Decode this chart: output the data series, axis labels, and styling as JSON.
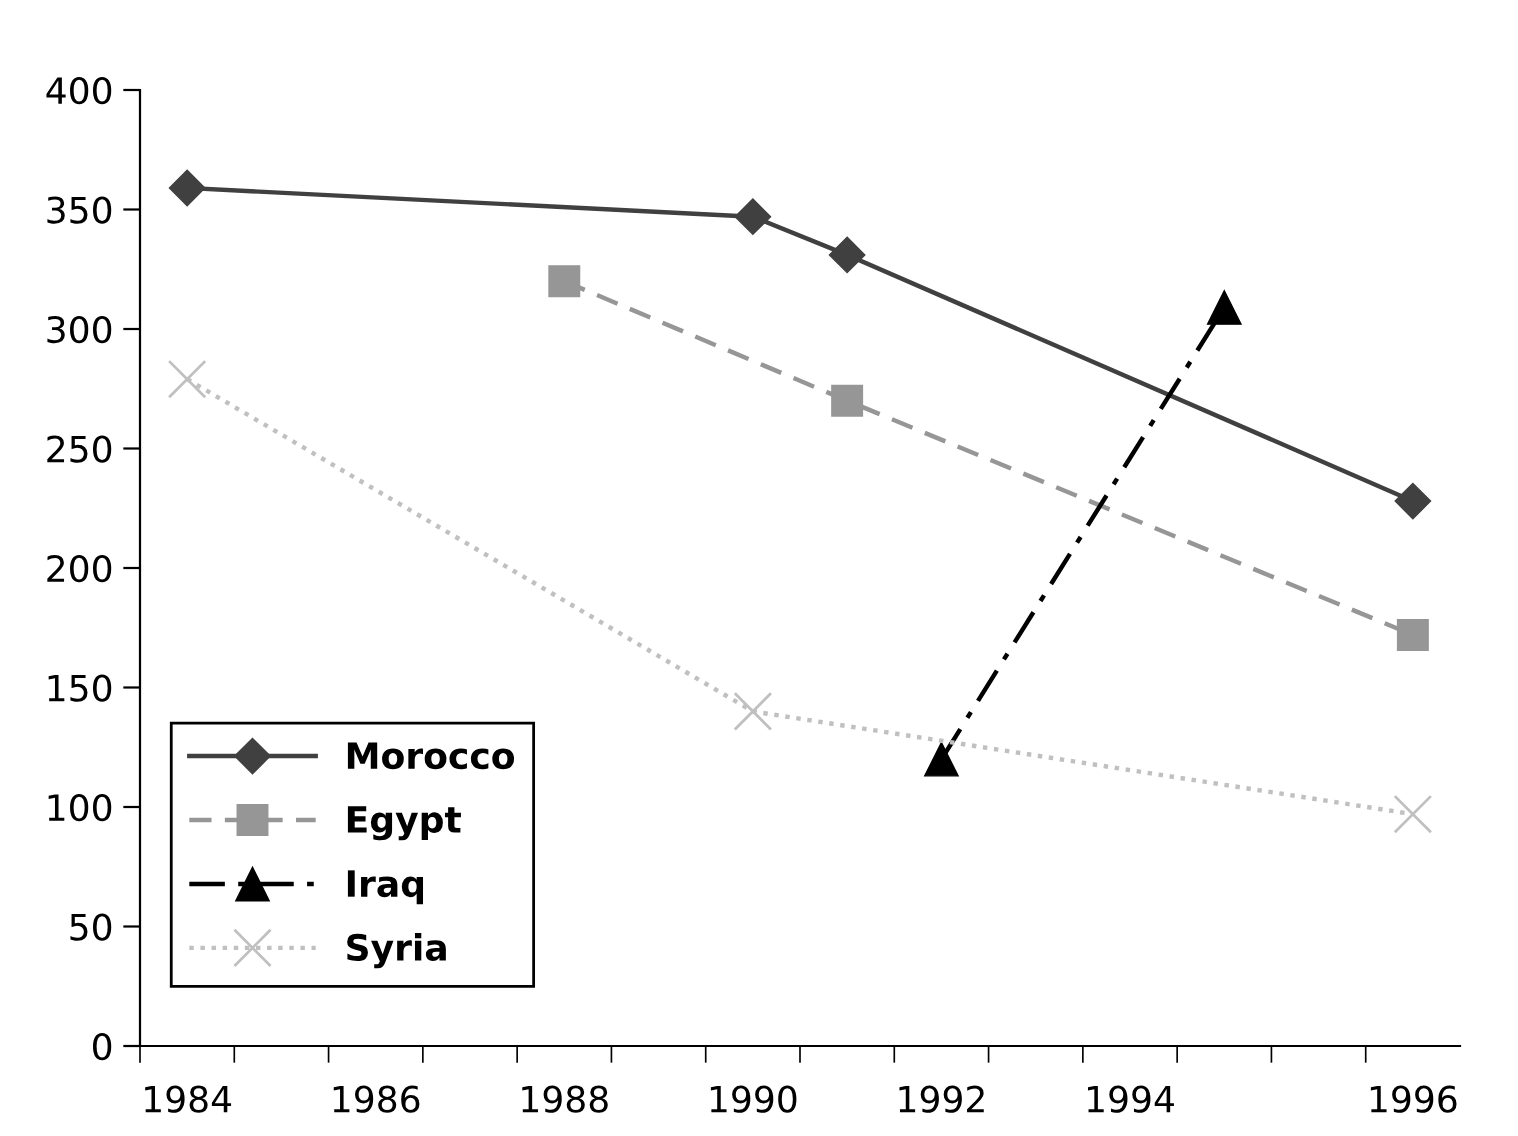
{
  "chart_data": {
    "type": "line",
    "categories": [
      "1984",
      null,
      "1986",
      null,
      "1988",
      null,
      "1990",
      null,
      "1992",
      null,
      "1994",
      null,
      null,
      "1996"
    ],
    "series": [
      {
        "name": "Morocco",
        "color": "#404040",
        "marker": "diamond",
        "line_style": "solid",
        "values": [
          359,
          null,
          null,
          null,
          null,
          null,
          347,
          331,
          null,
          null,
          null,
          null,
          null,
          228
        ]
      },
      {
        "name": "Egypt",
        "color": "#969696",
        "marker": "square",
        "line_style": "dashed",
        "values": [
          null,
          null,
          null,
          null,
          320,
          null,
          null,
          270,
          null,
          null,
          null,
          null,
          null,
          172
        ]
      },
      {
        "name": "Iraq",
        "color": "#000000",
        "marker": "triangle",
        "line_style": "dashdot",
        "values": [
          null,
          null,
          null,
          null,
          null,
          null,
          null,
          null,
          120,
          null,
          null,
          309,
          null,
          null
        ]
      },
      {
        "name": "Syria",
        "color": "#c0c0c0",
        "marker": "cross",
        "line_style": "dotted",
        "values": [
          279,
          null,
          null,
          null,
          null,
          null,
          140,
          null,
          null,
          null,
          null,
          null,
          null,
          97
        ]
      }
    ],
    "ylim": [
      0,
      400
    ],
    "yticks": [
      0,
      50,
      100,
      150,
      200,
      250,
      300,
      350,
      400
    ],
    "grid": false,
    "legend": "left"
  }
}
